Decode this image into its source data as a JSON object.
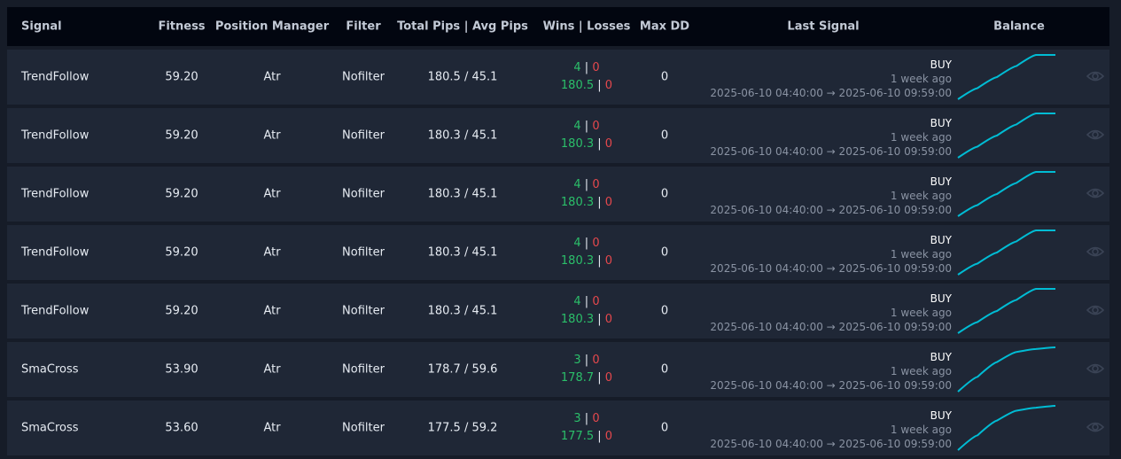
{
  "header": {
    "signal": "Signal",
    "fitness": "Fitness",
    "position_manager": "Position Manager",
    "filter": "Filter",
    "pips": "Total Pips | Avg Pips",
    "wins_losses": "Wins | Losses",
    "max_dd": "Max DD",
    "last_signal": "Last Signal",
    "balance": "Balance"
  },
  "colors": {
    "win": "#2bbf6a",
    "loss": "#e5484d",
    "sparkline": "#00bcd4"
  },
  "rows": [
    {
      "signal": "TrendFollow",
      "fitness": "59.20",
      "position_manager": "Atr",
      "filter": "Nofilter",
      "pips": "180.5 / 45.1",
      "wins": "4",
      "losses": "0",
      "win_pips": "180.5",
      "loss_pips": "0",
      "max_dd": "0",
      "last_signal": "BUY",
      "ago": "1 week ago",
      "range": "2025-06-10 04:40:00 → 2025-06-10 09:59:00",
      "balance": [
        0,
        45.1,
        90.2,
        135.3,
        180.5,
        180.5
      ]
    },
    {
      "signal": "TrendFollow",
      "fitness": "59.20",
      "position_manager": "Atr",
      "filter": "Nofilter",
      "pips": "180.3 / 45.1",
      "wins": "4",
      "losses": "0",
      "win_pips": "180.3",
      "loss_pips": "0",
      "max_dd": "0",
      "last_signal": "BUY",
      "ago": "1 week ago",
      "range": "2025-06-10 04:40:00 → 2025-06-10 09:59:00",
      "balance": [
        0,
        45.1,
        90.2,
        135.3,
        180.3,
        180.3
      ]
    },
    {
      "signal": "TrendFollow",
      "fitness": "59.20",
      "position_manager": "Atr",
      "filter": "Nofilter",
      "pips": "180.3 / 45.1",
      "wins": "4",
      "losses": "0",
      "win_pips": "180.3",
      "loss_pips": "0",
      "max_dd": "0",
      "last_signal": "BUY",
      "ago": "1 week ago",
      "range": "2025-06-10 04:40:00 → 2025-06-10 09:59:00",
      "balance": [
        0,
        45.1,
        90.2,
        135.3,
        180.3,
        180.3
      ]
    },
    {
      "signal": "TrendFollow",
      "fitness": "59.20",
      "position_manager": "Atr",
      "filter": "Nofilter",
      "pips": "180.3 / 45.1",
      "wins": "4",
      "losses": "0",
      "win_pips": "180.3",
      "loss_pips": "0",
      "max_dd": "0",
      "last_signal": "BUY",
      "ago": "1 week ago",
      "range": "2025-06-10 04:40:00 → 2025-06-10 09:59:00",
      "balance": [
        0,
        45.1,
        90.2,
        135.3,
        180.3,
        180.3
      ]
    },
    {
      "signal": "TrendFollow",
      "fitness": "59.20",
      "position_manager": "Atr",
      "filter": "Nofilter",
      "pips": "180.3 / 45.1",
      "wins": "4",
      "losses": "0",
      "win_pips": "180.3",
      "loss_pips": "0",
      "max_dd": "0",
      "last_signal": "BUY",
      "ago": "1 week ago",
      "range": "2025-06-10 04:40:00 → 2025-06-10 09:59:00",
      "balance": [
        0,
        45.1,
        90.2,
        135.3,
        180.3,
        180.3
      ]
    },
    {
      "signal": "SmaCross",
      "fitness": "53.90",
      "position_manager": "Atr",
      "filter": "Nofilter",
      "pips": "178.7 / 59.6",
      "wins": "3",
      "losses": "0",
      "win_pips": "178.7",
      "loss_pips": "0",
      "max_dd": "0",
      "last_signal": "BUY",
      "ago": "1 week ago",
      "range": "2025-06-10 04:40:00 → 2025-06-10 09:59:00",
      "balance": [
        0,
        59.6,
        119.2,
        160,
        172,
        178.7
      ]
    },
    {
      "signal": "SmaCross",
      "fitness": "53.60",
      "position_manager": "Atr",
      "filter": "Nofilter",
      "pips": "177.5 / 59.2",
      "wins": "3",
      "losses": "0",
      "win_pips": "177.5",
      "loss_pips": "0",
      "max_dd": "0",
      "last_signal": "BUY",
      "ago": "1 week ago",
      "range": "2025-06-10 04:40:00 → 2025-06-10 09:59:00",
      "balance": [
        0,
        59.2,
        118.4,
        158,
        170,
        177.5
      ]
    }
  ]
}
